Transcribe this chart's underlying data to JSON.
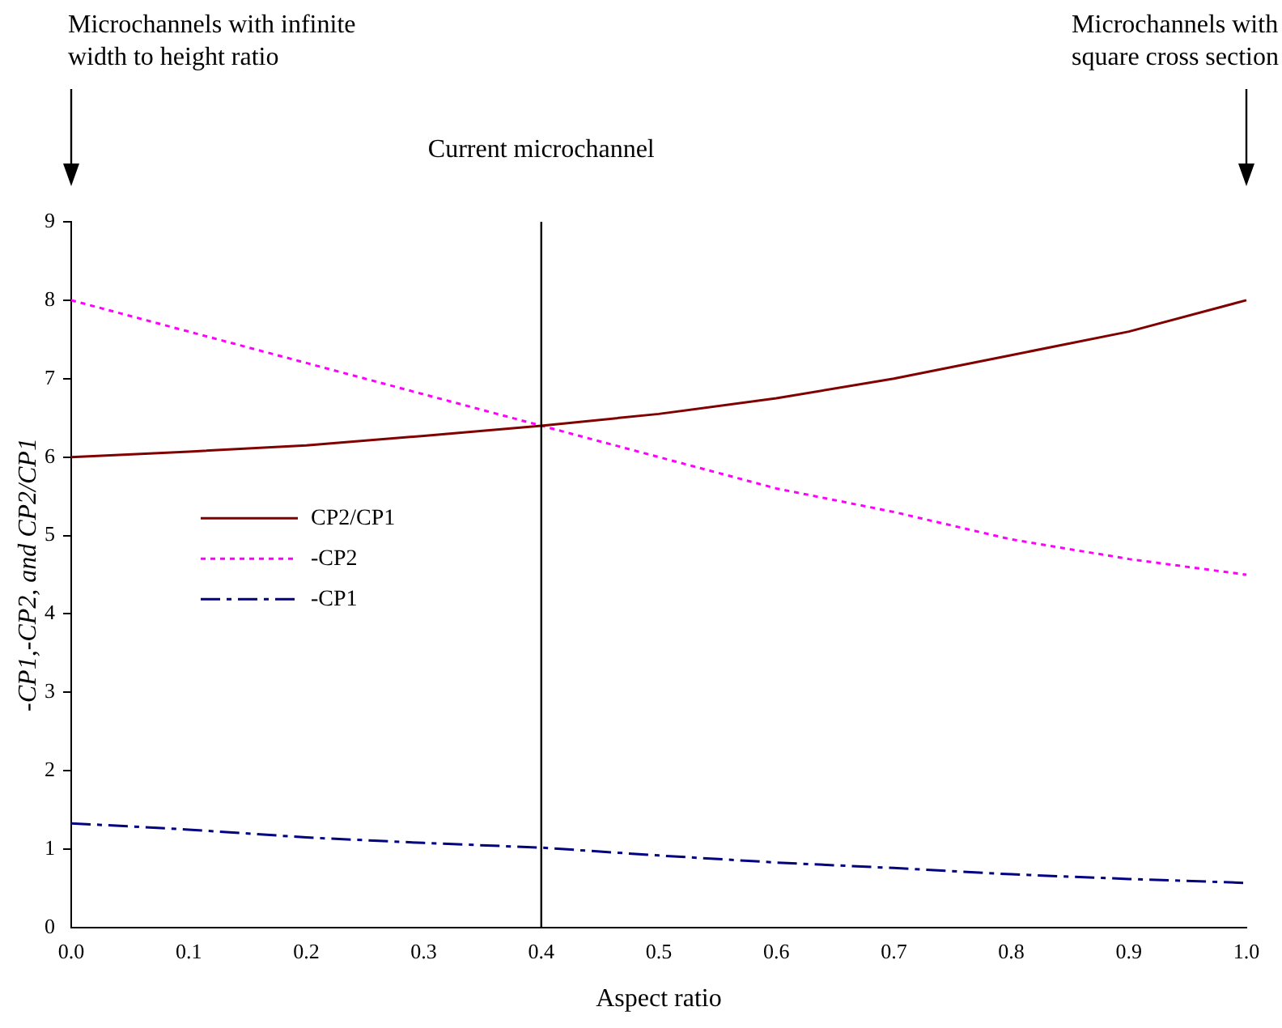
{
  "chart_data": {
    "type": "line",
    "xlabel": "Aspect ratio",
    "ylabel": "-CP1,-CP2, and CP2/CP1",
    "x": [
      0,
      0.1,
      0.2,
      0.3,
      0.4,
      0.5,
      0.6,
      0.7,
      0.8,
      0.9,
      1.0
    ],
    "series": [
      {
        "name": "CP2/CP1",
        "color": "#800000",
        "line_style": "solid",
        "values": [
          6.0,
          6.07,
          6.15,
          6.27,
          6.4,
          6.55,
          6.75,
          7.0,
          7.3,
          7.6,
          8.0
        ]
      },
      {
        "name": "-CP2",
        "color": "#ff00ff",
        "line_style": "dotted",
        "values": [
          8.0,
          7.6,
          7.2,
          6.8,
          6.4,
          6.0,
          5.6,
          5.3,
          4.95,
          4.7,
          4.5
        ]
      },
      {
        "name": "-CP1",
        "color": "#000080",
        "line_style": "dashed",
        "values": [
          1.33,
          1.25,
          1.15,
          1.08,
          1.02,
          0.92,
          0.83,
          0.76,
          0.68,
          0.62,
          0.57
        ]
      }
    ],
    "xlim": [
      0,
      1
    ],
    "ylim": [
      0,
      9
    ],
    "xticks": [
      {
        "value": 0,
        "label": "0.0"
      },
      {
        "value": 0.1,
        "label": "0.1"
      },
      {
        "value": 0.2,
        "label": "0.2"
      },
      {
        "value": 0.3,
        "label": "0.3"
      },
      {
        "value": 0.4,
        "label": "0.4"
      },
      {
        "value": 0.5,
        "label": "0.5"
      },
      {
        "value": 0.6,
        "label": "0.6"
      },
      {
        "value": 0.7,
        "label": "0.7"
      },
      {
        "value": 0.8,
        "label": "0.8"
      },
      {
        "value": 0.9,
        "label": "0.9"
      },
      {
        "value": 1,
        "label": "1.0"
      }
    ],
    "yticks": [
      0,
      1,
      2,
      3,
      4,
      5,
      6,
      7,
      8,
      9
    ],
    "ref_lines": [
      {
        "axis": "x",
        "value": 0.4,
        "label": "Current microchannel",
        "color": "#000000"
      }
    ],
    "annotations": [
      "Microchannels with infinite\nwidth to height ratio",
      "Microchannels with\nsquare cross section"
    ],
    "grid": false,
    "legend": "center left",
    "marker": "none"
  }
}
